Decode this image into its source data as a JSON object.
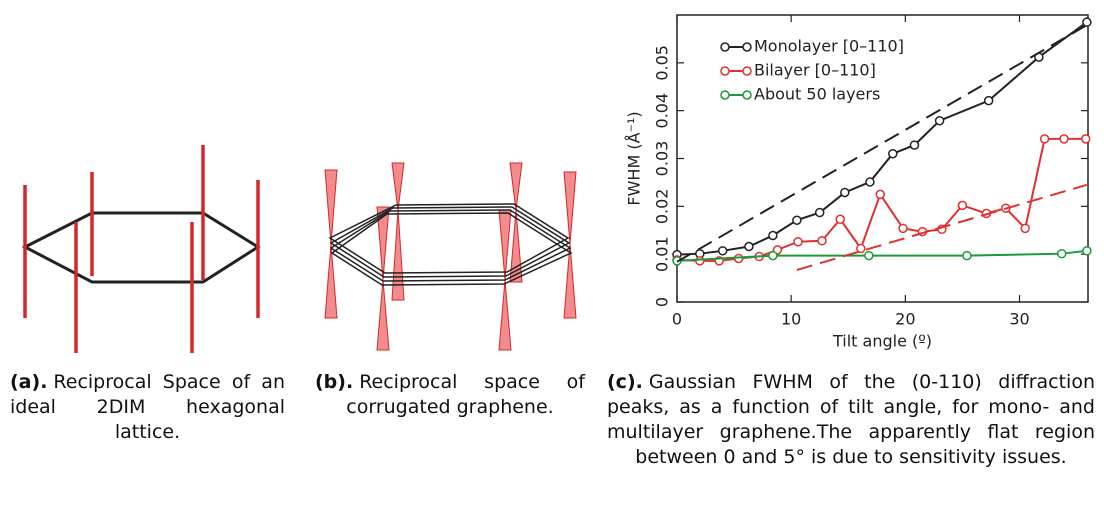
{
  "panels": [
    {
      "label": "(a).",
      "caption": "Reciprocal Space of an ideal 2DIM hexagonal lattice."
    },
    {
      "label": "(b).",
      "caption": "Reciprocal space of corrugated graphene."
    },
    {
      "label": "(c).",
      "caption": "Gaussian FWHM of the (0-110) diffraction peaks, as a function of tilt angle, for mono- and multilayer graphene.The apparently flat region between 0 and 5° is due to sensitivity issues."
    }
  ],
  "chart_data": {
    "type": "line",
    "x_label": "Tilt angle (º)",
    "y_label": "FWHM (Å⁻¹)",
    "xlim": [
      0,
      36
    ],
    "xticks": [
      0,
      10,
      20,
      30
    ],
    "ylim": [
      0,
      0.06
    ],
    "yticks": [
      0,
      0.01,
      0.02,
      0.03,
      0.04,
      0.05
    ],
    "legend": "upper left",
    "series": [
      {
        "name": "Monolayer [0–110]",
        "color": "#222222",
        "marker": "o",
        "x": [
          0,
          2.0,
          4.0,
          6.3,
          8.4,
          10.5,
          12.5,
          14.7,
          16.9,
          18.9,
          20.8,
          23.0,
          27.3,
          31.7,
          35.9
        ],
        "values": [
          0.0099,
          0.0101,
          0.0107,
          0.0116,
          0.0139,
          0.0171,
          0.0187,
          0.0229,
          0.0251,
          0.031,
          0.0328,
          0.0379,
          0.0421,
          0.0512,
          0.0585
        ]
      },
      {
        "name": "Bilayer [0–110]",
        "color": "#e03030",
        "marker": "o",
        "x": [
          0,
          2.0,
          3.7,
          5.4,
          7.2,
          8.8,
          10.6,
          12.7,
          14.3,
          16.1,
          17.8,
          19.8,
          21.5,
          23.2,
          25.0,
          27.1,
          28.8,
          30.5,
          32.2,
          33.9,
          35.8
        ],
        "values": [
          0.0088,
          0.0086,
          0.0086,
          0.0091,
          0.0095,
          0.0109,
          0.0126,
          0.0128,
          0.0173,
          0.0112,
          0.0225,
          0.0154,
          0.0147,
          0.0152,
          0.0202,
          0.0185,
          0.0196,
          0.0154,
          0.0341,
          0.0341,
          0.0341
        ]
      },
      {
        "name": "About 50 layers",
        "color": "#1a9a3a",
        "marker": "o",
        "x": [
          0,
          8.4,
          16.8,
          25.4,
          33.7,
          35.9
        ],
        "values": [
          0.0086,
          0.0097,
          0.0097,
          0.0097,
          0.0101,
          0.0107
        ]
      },
      {
        "color": "#222222",
        "dashed": true,
        "x": [
          0,
          35.9
        ],
        "values": [
          0.0084,
          0.0579
        ]
      },
      {
        "color": "#e03030",
        "dashed": true,
        "x": [
          10.5,
          35.9
        ],
        "values": [
          0.0067,
          0.0245
        ]
      }
    ]
  }
}
